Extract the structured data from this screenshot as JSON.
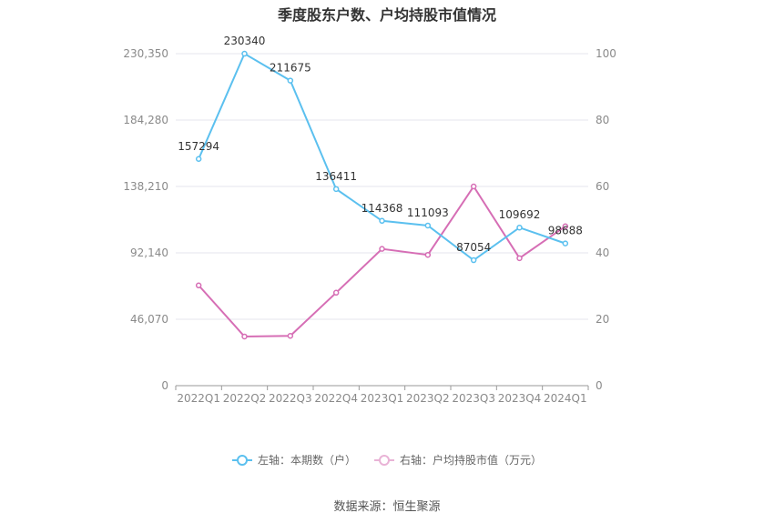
{
  "title": "季度股东户数、户均持股市值情况",
  "source": "数据来源：恒生聚源",
  "colors": {
    "left_series": "#5bc0ef",
    "right_series": "#d66eb5"
  },
  "chart_data": {
    "type": "line",
    "categories": [
      "2022Q1",
      "2022Q2",
      "2022Q3",
      "2022Q4",
      "2023Q1",
      "2023Q2",
      "2023Q3",
      "2023Q4",
      "2024Q1"
    ],
    "left_axis": {
      "ylim": [
        0,
        230350
      ],
      "ticks": [
        "0",
        "46,070",
        "92,140",
        "138,210",
        "184,280",
        "230,350"
      ]
    },
    "right_axis": {
      "ylim": [
        0,
        100
      ],
      "ticks": [
        "0",
        "20",
        "40",
        "60",
        "80",
        "100"
      ]
    },
    "series": [
      {
        "name": "左轴：本期数（户）",
        "axis": "left",
        "values": [
          157294,
          230340,
          211675,
          136411,
          114368,
          111093,
          87054,
          109692,
          98688
        ],
        "labels": [
          "157294",
          "230340",
          "211675",
          "136411",
          "114368",
          "111093",
          "87054",
          "109692",
          "98688"
        ]
      },
      {
        "name": "右轴：户均持股市值（万元）",
        "axis": "right",
        "values": [
          30.2,
          14.8,
          15.0,
          28.0,
          41.2,
          39.4,
          60.0,
          38.4,
          48.0
        ]
      }
    ],
    "grid": true,
    "legend": "bottom-center"
  }
}
